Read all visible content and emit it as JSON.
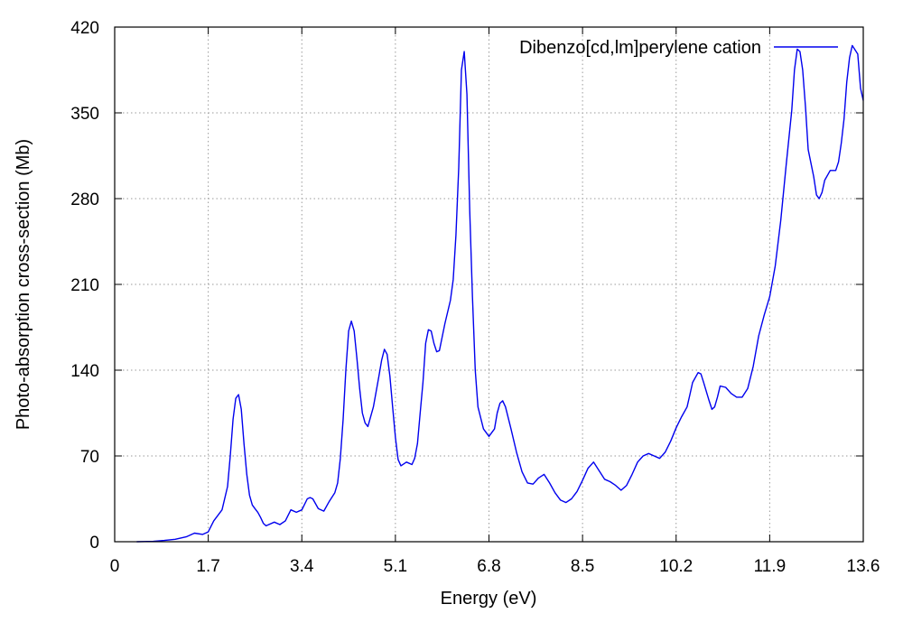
{
  "chart_data": {
    "type": "line",
    "xlabel": "Energy (eV)",
    "ylabel": "Photo-absorption cross-section (Mb)",
    "xlim": [
      0,
      13.6
    ],
    "ylim": [
      0,
      420
    ],
    "xticks": [
      0,
      1.7,
      3.4,
      5.1,
      6.8,
      8.5,
      10.2,
      11.9,
      13.6
    ],
    "xtick_labels": [
      "0",
      "1.7",
      "3.4",
      "5.1",
      "6.8",
      "8.5",
      "10.2",
      "11.9",
      "13.6"
    ],
    "yticks": [
      0,
      70,
      140,
      210,
      280,
      350,
      420
    ],
    "ytick_labels": [
      "0",
      "70",
      "140",
      "210",
      "280",
      "350",
      "420"
    ],
    "grid": true,
    "legend_position": "top-right",
    "series": [
      {
        "name": "Dibenzo[cd,lm]perylene cation",
        "color": "#0000ee",
        "x": [
          0.4,
          0.7,
          0.9,
          1.1,
          1.3,
          1.45,
          1.6,
          1.7,
          1.8,
          1.95,
          2.05,
          2.1,
          2.15,
          2.2,
          2.25,
          2.3,
          2.35,
          2.4,
          2.45,
          2.5,
          2.55,
          2.6,
          2.65,
          2.7,
          2.75,
          2.8,
          2.9,
          3.0,
          3.1,
          3.2,
          3.3,
          3.4,
          3.5,
          3.55,
          3.6,
          3.7,
          3.8,
          3.9,
          4.0,
          4.05,
          4.1,
          4.15,
          4.2,
          4.25,
          4.3,
          4.35,
          4.4,
          4.45,
          4.5,
          4.55,
          4.6,
          4.7,
          4.8,
          4.85,
          4.9,
          4.95,
          5.0,
          5.05,
          5.1,
          5.15,
          5.2,
          5.3,
          5.4,
          5.45,
          5.5,
          5.55,
          5.6,
          5.65,
          5.7,
          5.75,
          5.8,
          5.85,
          5.9,
          6.0,
          6.1,
          6.15,
          6.2,
          6.25,
          6.3,
          6.35,
          6.4,
          6.45,
          6.5,
          6.55,
          6.6,
          6.7,
          6.8,
          6.9,
          6.95,
          7.0,
          7.05,
          7.1,
          7.2,
          7.3,
          7.4,
          7.5,
          7.6,
          7.7,
          7.8,
          7.9,
          8.0,
          8.1,
          8.2,
          8.3,
          8.4,
          8.5,
          8.6,
          8.7,
          8.8,
          8.9,
          9.0,
          9.1,
          9.2,
          9.3,
          9.4,
          9.5,
          9.6,
          9.7,
          9.8,
          9.9,
          10.0,
          10.1,
          10.2,
          10.3,
          10.4,
          10.45,
          10.5,
          10.6,
          10.65,
          10.7,
          10.8,
          10.85,
          10.9,
          10.95,
          11.0,
          11.1,
          11.2,
          11.3,
          11.4,
          11.5,
          11.6,
          11.7,
          11.8,
          11.9,
          12.0,
          12.1,
          12.2,
          12.3,
          12.35,
          12.4,
          12.45,
          12.5,
          12.55,
          12.6,
          12.7,
          12.75,
          12.8,
          12.85,
          12.9,
          13.0,
          13.1,
          13.15,
          13.2,
          13.25,
          13.3,
          13.35,
          13.4,
          13.5,
          13.55,
          13.6
        ],
        "y": [
          0,
          0.3,
          1,
          2,
          4,
          7,
          6,
          8,
          17,
          26,
          45,
          70,
          100,
          117,
          120,
          108,
          80,
          55,
          38,
          30,
          27,
          24,
          20,
          15,
          13,
          14,
          16,
          14,
          17,
          26,
          24,
          26,
          35,
          36,
          35,
          27,
          25,
          33,
          40,
          48,
          68,
          100,
          140,
          172,
          180,
          172,
          150,
          125,
          105,
          97,
          94,
          110,
          135,
          148,
          157,
          153,
          135,
          110,
          85,
          67,
          62,
          65,
          63,
          68,
          80,
          105,
          130,
          162,
          173,
          172,
          162,
          155,
          156,
          178,
          197,
          214,
          250,
          305,
          385,
          400,
          365,
          270,
          200,
          140,
          110,
          92,
          86,
          92,
          105,
          113,
          115,
          110,
          92,
          73,
          57,
          48,
          47,
          52,
          55,
          48,
          40,
          34,
          32,
          35,
          41,
          50,
          60,
          65,
          58,
          51,
          49,
          46,
          42,
          46,
          55,
          65,
          70,
          72,
          70,
          68,
          73,
          82,
          93,
          102,
          110,
          120,
          130,
          138,
          137,
          130,
          115,
          108,
          110,
          118,
          127,
          126,
          121,
          118,
          118,
          125,
          143,
          168,
          185,
          200,
          225,
          262,
          308,
          352,
          385,
          402,
          400,
          385,
          355,
          320,
          298,
          283,
          280,
          285,
          295,
          303,
          303,
          310,
          325,
          345,
          375,
          395,
          405,
          398,
          370,
          360
        ]
      }
    ]
  }
}
